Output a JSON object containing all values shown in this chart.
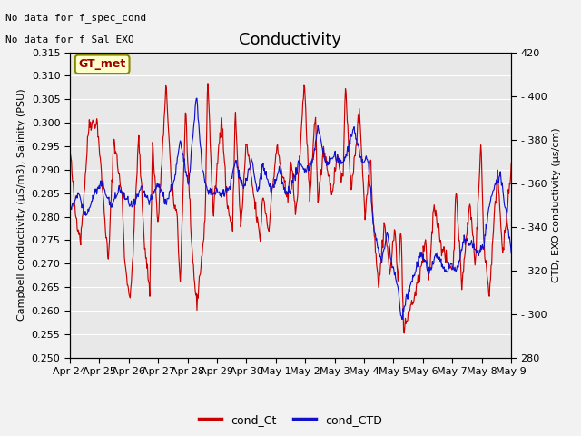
{
  "title": "Conductivity",
  "ylabel_left": "Campbell conductivity (µS/m3), Salinity (PSU)",
  "ylabel_right": "CTD, EXO conductivity (µs/cm)",
  "ylim_left": [
    0.25,
    0.315
  ],
  "ylim_right": [
    280,
    420
  ],
  "yticks_left": [
    0.25,
    0.255,
    0.26,
    0.265,
    0.27,
    0.275,
    0.28,
    0.285,
    0.29,
    0.295,
    0.3,
    0.305,
    0.31,
    0.315
  ],
  "yticks_right": [
    280,
    300,
    320,
    340,
    360,
    380,
    400,
    420
  ],
  "xtick_labels": [
    "Apr 24",
    "Apr 25",
    "Apr 26",
    "Apr 27",
    "Apr 28",
    "Apr 29",
    "Apr 30",
    "May 1",
    "May 2",
    "May 3",
    "May 4",
    "May 5",
    "May 6",
    "May 7",
    "May 8",
    "May 9"
  ],
  "color_red": "#cc0000",
  "color_blue": "#1111cc",
  "legend_label_red": "cond_Ct",
  "legend_label_blue": "cond_CTD",
  "box_label": "GT_met",
  "box_facecolor": "#ffffcc",
  "box_edgecolor": "#888800",
  "box_textcolor": "#990000",
  "note_line1": "No data for f_spec_cond",
  "note_line2": "No data for f_Sal_EXO",
  "fig_facecolor": "#f2f2f2",
  "axes_facecolor": "#e8e8e8",
  "grid_color": "#ffffff",
  "title_fontsize": 13,
  "axes_label_fontsize": 8,
  "tick_fontsize": 8,
  "note_fontsize": 8,
  "n_days": 16
}
